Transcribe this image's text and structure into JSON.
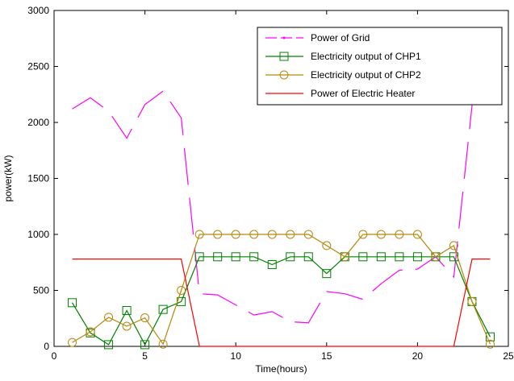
{
  "chart_data": {
    "type": "line",
    "title": "",
    "xlabel": "Time(hours)",
    "ylabel": "power(kW)",
    "xlim": [
      0,
      25
    ],
    "ylim": [
      0,
      3000
    ],
    "xticks": [
      0,
      5,
      10,
      15,
      20,
      25
    ],
    "yticks": [
      0,
      500,
      1000,
      1500,
      2000,
      2500,
      3000
    ],
    "grid": false,
    "legend_position": "top-right",
    "series": [
      {
        "name": "Power of Grid",
        "color": "#ff00ff",
        "style": "dashed",
        "marker": "point",
        "x": [
          1,
          2,
          3,
          4,
          5,
          6,
          7,
          8,
          9,
          10,
          11,
          12,
          13,
          14,
          15,
          16,
          17,
          18,
          19,
          20,
          21,
          22,
          23,
          24
        ],
        "y": [
          2120,
          2220,
          2100,
          1860,
          2160,
          2280,
          2040,
          470,
          460,
          370,
          280,
          310,
          220,
          210,
          490,
          470,
          420,
          560,
          680,
          690,
          800,
          620,
          2150,
          2590
        ]
      },
      {
        "name": "Electricity output of CHP1",
        "color": "#008000",
        "style": "solid",
        "marker": "square",
        "x": [
          1,
          2,
          3,
          4,
          5,
          6,
          7,
          8,
          9,
          10,
          11,
          12,
          13,
          14,
          15,
          16,
          17,
          18,
          19,
          20,
          21,
          22,
          23,
          24
        ],
        "y": [
          390,
          120,
          15,
          320,
          15,
          330,
          400,
          800,
          800,
          800,
          800,
          730,
          800,
          800,
          650,
          800,
          800,
          800,
          800,
          800,
          800,
          800,
          400,
          85
        ]
      },
      {
        "name": "Electricity output of CHP2",
        "color": "#b8860b",
        "style": "solid",
        "marker": "circle",
        "x": [
          1,
          2,
          3,
          4,
          5,
          6,
          7,
          8,
          9,
          10,
          11,
          12,
          13,
          14,
          15,
          16,
          17,
          18,
          19,
          20,
          21,
          22,
          23,
          24
        ],
        "y": [
          35,
          130,
          260,
          180,
          255,
          20,
          500,
          1000,
          1000,
          1000,
          1000,
          1000,
          1000,
          1000,
          900,
          800,
          1000,
          1000,
          1000,
          1000,
          800,
          900,
          400,
          20
        ]
      },
      {
        "name": "Power of Electric Heater",
        "color": "#ff0000",
        "style": "solid",
        "marker": "none",
        "x": [
          1,
          2,
          3,
          4,
          5,
          6,
          7,
          8,
          9,
          10,
          11,
          12,
          13,
          14,
          15,
          16,
          17,
          18,
          19,
          20,
          21,
          22,
          23,
          24
        ],
        "y": [
          780,
          780,
          780,
          780,
          780,
          780,
          780,
          0,
          0,
          0,
          0,
          0,
          0,
          0,
          0,
          0,
          0,
          0,
          0,
          0,
          0,
          0,
          780,
          780
        ]
      }
    ]
  }
}
